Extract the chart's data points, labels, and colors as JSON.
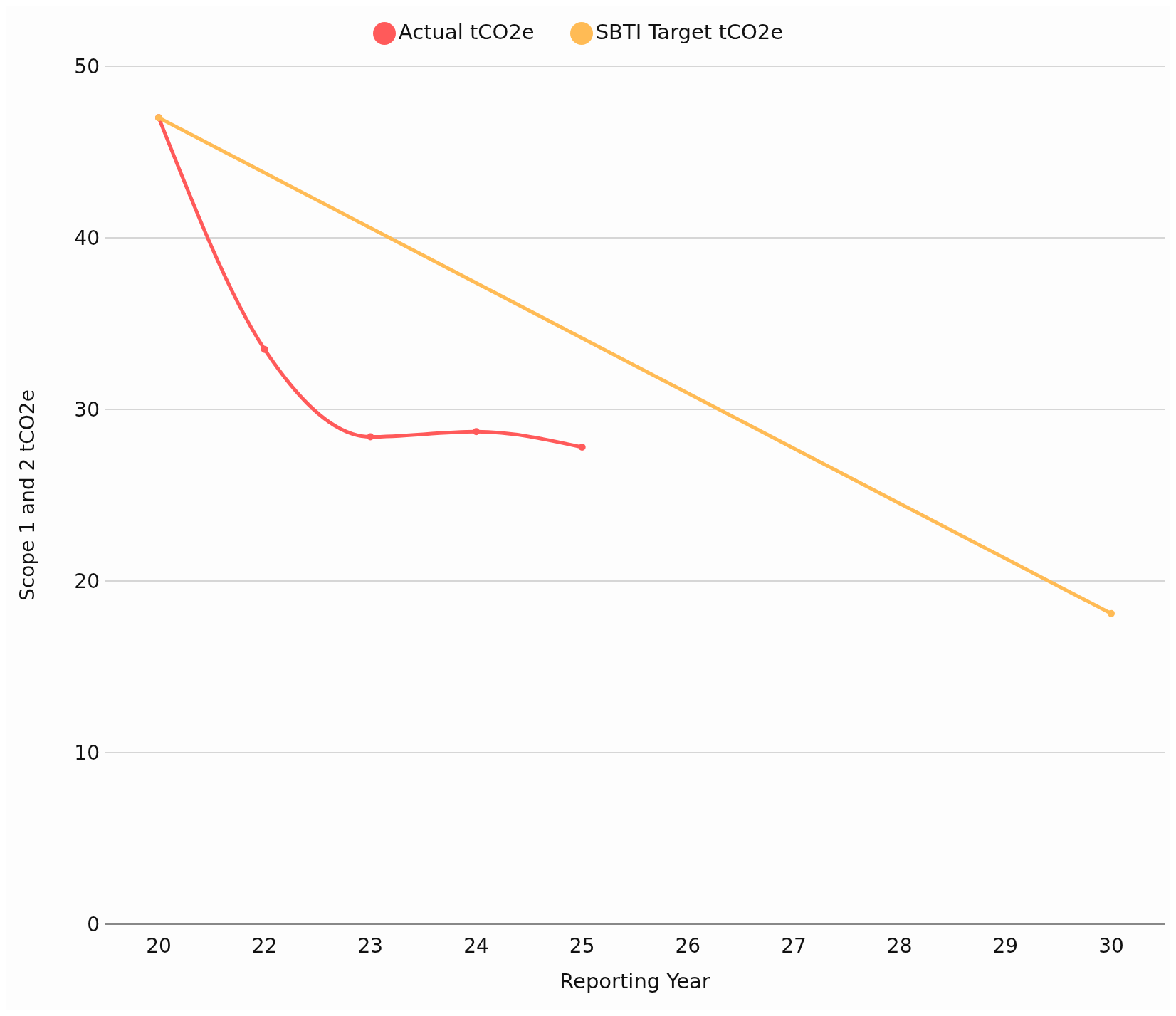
{
  "chart_data": {
    "type": "line",
    "xlabel": "Reporting Year",
    "ylabel": "Scope 1 and 2 tCO2e",
    "categories": [
      "20",
      "22",
      "23",
      "24",
      "25",
      "26",
      "27",
      "28",
      "29",
      "30"
    ],
    "series": [
      {
        "name": "Actual tCO2e",
        "color": "#ff5a5a",
        "values": [
          47,
          33.5,
          28.4,
          28.7,
          27.8,
          null,
          null,
          null,
          null,
          null
        ]
      },
      {
        "name": "SBTI Target tCO2e",
        "color": "#ffbb55",
        "values": [
          47,
          null,
          null,
          null,
          null,
          null,
          null,
          null,
          null,
          18.1
        ]
      }
    ],
    "ylim": [
      0,
      50
    ],
    "yticks": [
      0,
      10,
      20,
      30,
      40,
      50
    ],
    "grid": "y",
    "legend": "top",
    "marker": "circle",
    "line_style": "solid"
  }
}
